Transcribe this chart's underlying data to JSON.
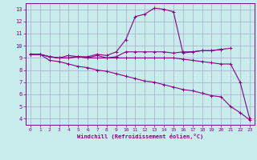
{
  "xlabel": "Windchill (Refroidissement éolien,°C)",
  "bg_color": "#c8ecec",
  "grid_color": "#aaaacc",
  "line_color": "#880088",
  "xlim": [
    -0.5,
    23.5
  ],
  "ylim": [
    3.5,
    13.5
  ],
  "xticks": [
    0,
    1,
    2,
    3,
    4,
    5,
    6,
    7,
    8,
    9,
    10,
    11,
    12,
    13,
    14,
    15,
    16,
    17,
    18,
    19,
    20,
    21,
    22,
    23
  ],
  "yticks": [
    4,
    5,
    6,
    7,
    8,
    9,
    10,
    11,
    12,
    13
  ],
  "series": [
    [
      9.3,
      9.3,
      9.1,
      9.0,
      9.0,
      9.1,
      9.0,
      9.2,
      9.0,
      9.1,
      9.5,
      9.5,
      9.5,
      9.5,
      9.5,
      9.4,
      9.5,
      9.5,
      9.6,
      9.6,
      9.7,
      9.8,
      null,
      null
    ],
    [
      9.3,
      9.3,
      9.1,
      9.0,
      9.0,
      9.1,
      9.0,
      9.0,
      9.0,
      9.0,
      9.0,
      9.0,
      9.0,
      9.0,
      9.0,
      9.0,
      8.9,
      8.8,
      8.7,
      8.6,
      8.5,
      8.5,
      7.0,
      4.0
    ],
    [
      9.3,
      9.3,
      9.1,
      9.0,
      9.2,
      9.1,
      9.1,
      9.3,
      9.2,
      9.5,
      10.5,
      12.4,
      12.6,
      13.1,
      13.0,
      12.8,
      9.4,
      9.5,
      9.6,
      9.6,
      9.7,
      null,
      null,
      null
    ],
    [
      9.3,
      9.3,
      8.8,
      8.7,
      8.5,
      8.3,
      8.2,
      8.0,
      7.9,
      7.7,
      7.5,
      7.3,
      7.1,
      7.0,
      6.8,
      6.6,
      6.4,
      6.3,
      6.1,
      5.9,
      5.8,
      5.0,
      4.5,
      3.9
    ]
  ]
}
